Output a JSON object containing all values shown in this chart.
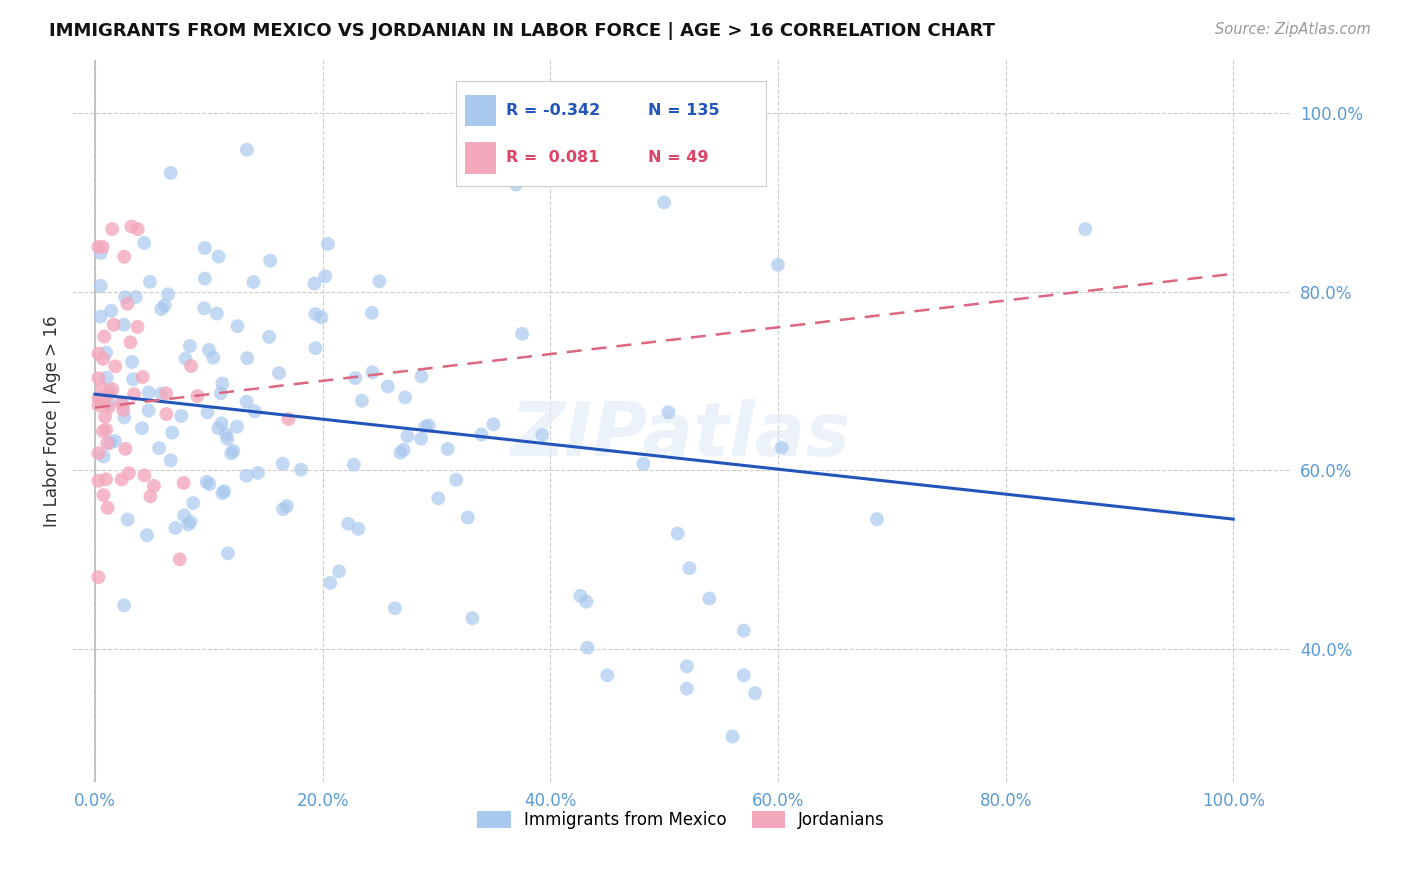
{
  "title": "IMMIGRANTS FROM MEXICO VS JORDANIAN IN LABOR FORCE | AGE > 16 CORRELATION CHART",
  "source": "Source: ZipAtlas.com",
  "ylabel": "In Labor Force | Age > 16",
  "legend_labels": [
    "Immigrants from Mexico",
    "Jordanians"
  ],
  "R_blue": -0.342,
  "N_blue": 135,
  "R_pink": 0.081,
  "N_pink": 49,
  "blue_color": "#A8C8EE",
  "pink_color": "#F4A8BC",
  "trend_blue": "#2255BB",
  "trend_pink": "#DD6680",
  "background_color": "#FFFFFF",
  "grid_color": "#CCCCCC",
  "label_color": "#5B9BD5",
  "watermark": "ZIPatlas",
  "ytick_vals": [
    0.4,
    0.6,
    0.8,
    1.0
  ],
  "ytick_labels": [
    "40.0%",
    "60.0%",
    "80.0%",
    "100.0%"
  ],
  "xtick_vals": [
    0.0,
    0.2,
    0.4,
    0.6,
    0.8,
    1.0
  ],
  "xtick_labels": [
    "0.0%",
    "20.0%",
    "40.0%",
    "60.0%",
    "80.0%",
    "100.0%"
  ],
  "xlim": [
    -0.02,
    1.05
  ],
  "ylim": [
    0.25,
    1.06
  ]
}
